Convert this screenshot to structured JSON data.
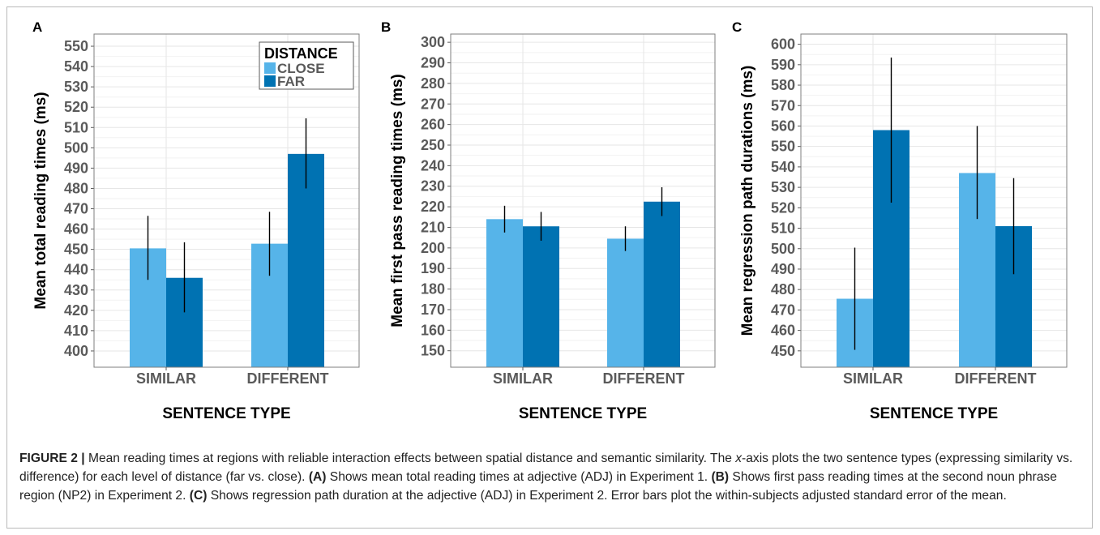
{
  "colors": {
    "close": "#56b4e9",
    "far": "#0072b2"
  },
  "legend": {
    "title": "DISTANCE",
    "items": [
      "CLOSE",
      "FAR"
    ]
  },
  "caption": {
    "label": "FIGURE 2 |",
    "p1": " Mean reading times at regions with reliable interaction effects between spatial distance and semantic similarity. The ",
    "x_italic": "x",
    "p2": "-axis plots the two sentence types (expressing similarity vs. difference) for each level of distance (far vs. close). ",
    "a_label": "(A)",
    "a_text": " Shows mean total reading times at adjective (ADJ) in Experiment 1. ",
    "b_label": "(B)",
    "b_text": " Shows first pass reading times at the second noun phrase region (NP2) in Experiment 2. ",
    "c_label": "(C)",
    "c_text": " Shows regression path duration at the adjective (ADJ) in Experiment 2. Error bars plot the within-subjects adjusted standard error of the mean."
  },
  "chart_data": [
    {
      "type": "bar",
      "panel": "A",
      "categories": [
        "SIMILAR",
        "DIFFERENT"
      ],
      "xlabel": "SENTENCE TYPE",
      "ylabel": "Mean total reading times (ms)",
      "ylim": [
        392,
        556
      ],
      "yticks": [
        400,
        410,
        420,
        430,
        440,
        450,
        460,
        470,
        480,
        490,
        500,
        510,
        520,
        530,
        540,
        550
      ],
      "legend": "top-right",
      "grid": true,
      "series": [
        {
          "name": "CLOSE",
          "values": [
            450.5,
            452.8
          ],
          "err_low": [
            435,
            437
          ],
          "err_high": [
            466.5,
            468.5
          ]
        },
        {
          "name": "FAR",
          "values": [
            436,
            497
          ],
          "err_low": [
            419,
            480
          ],
          "err_high": [
            453.5,
            514.5
          ]
        }
      ]
    },
    {
      "type": "bar",
      "panel": "B",
      "categories": [
        "SIMILAR",
        "DIFFERENT"
      ],
      "xlabel": "SENTENCE TYPE",
      "ylabel": "Mean first pass reading times (ms)",
      "ylim": [
        142,
        304
      ],
      "yticks": [
        150,
        160,
        170,
        180,
        190,
        200,
        210,
        220,
        230,
        240,
        250,
        260,
        270,
        280,
        290,
        300
      ],
      "grid": true,
      "series": [
        {
          "name": "CLOSE",
          "values": [
            214,
            204.5
          ],
          "err_low": [
            207.5,
            198.5
          ],
          "err_high": [
            220.5,
            210.5
          ]
        },
        {
          "name": "FAR",
          "values": [
            210.5,
            222.5
          ],
          "err_low": [
            203.5,
            215.5
          ],
          "err_high": [
            217.5,
            229.5
          ]
        }
      ]
    },
    {
      "type": "bar",
      "panel": "C",
      "categories": [
        "SIMILAR",
        "DIFFERENT"
      ],
      "xlabel": "SENTENCE TYPE",
      "ylabel": "Mean regression path durations (ms)",
      "ylim": [
        442,
        605
      ],
      "yticks": [
        450,
        460,
        470,
        480,
        490,
        500,
        510,
        520,
        530,
        540,
        550,
        560,
        570,
        580,
        590,
        600
      ],
      "grid": true,
      "series": [
        {
          "name": "CLOSE",
          "values": [
            475.5,
            537
          ],
          "err_low": [
            450.5,
            514.5
          ],
          "err_high": [
            500.5,
            560
          ]
        },
        {
          "name": "FAR",
          "values": [
            558,
            511
          ],
          "err_low": [
            522.5,
            487.5
          ],
          "err_high": [
            593.5,
            534.5
          ]
        }
      ]
    }
  ]
}
